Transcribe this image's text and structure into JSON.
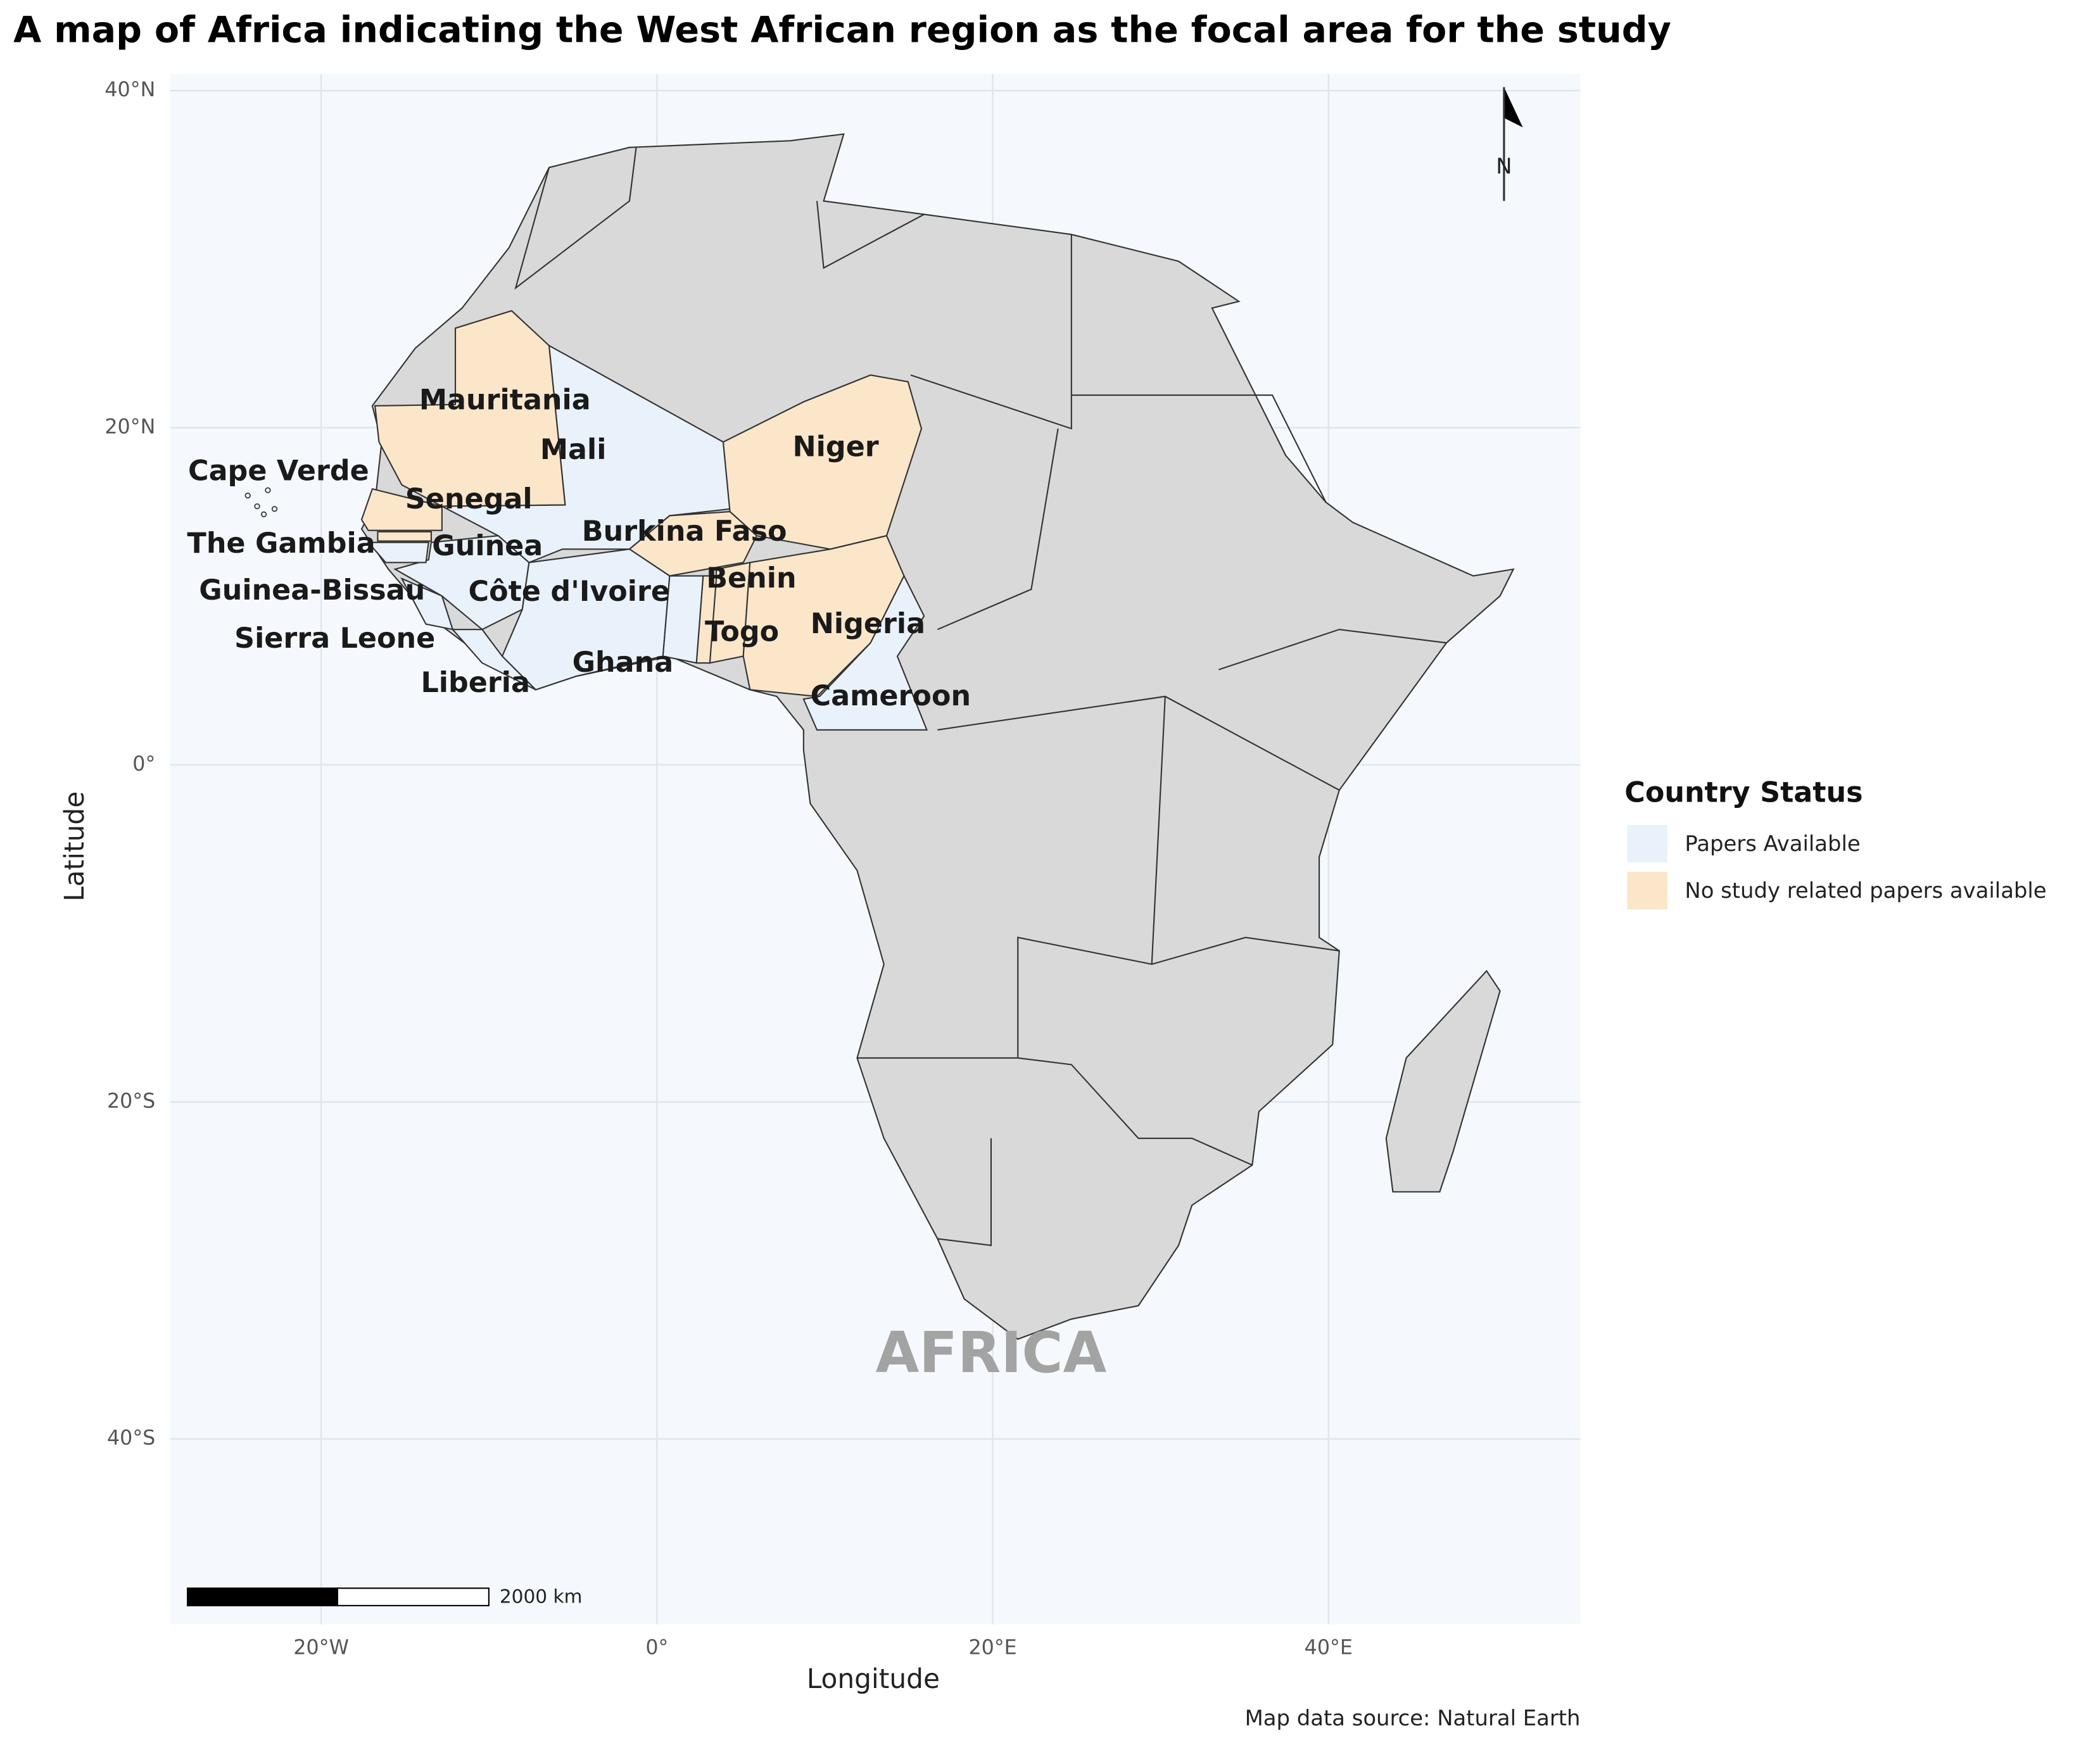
{
  "map": {
    "title": "A map of Africa indicating the West African region as the focal area for the study",
    "x_label": "Longitude",
    "y_label": "Latitude",
    "xlim": [
      -29,
      55
    ],
    "ylim": [
      -51,
      41
    ],
    "xticks": [
      {
        "value": -20,
        "label": "20°W"
      },
      {
        "value": 0,
        "label": "0°"
      },
      {
        "value": 20,
        "label": "20°E"
      },
      {
        "value": 40,
        "label": "40°E"
      }
    ],
    "yticks": [
      {
        "value": 40,
        "label": "40°N"
      },
      {
        "value": 20,
        "label": "20°N"
      },
      {
        "value": 0,
        "label": "0°"
      },
      {
        "value": -20,
        "label": "20°S"
      },
      {
        "value": -40,
        "label": "40°S"
      }
    ],
    "grid": true,
    "legend": {
      "title": "Country Status",
      "items": [
        {
          "label": "Papers Available",
          "color": "#e9f2fb"
        },
        {
          "label": "No study related papers available",
          "color": "#fbe6c9"
        }
      ]
    },
    "countries": [
      {
        "name": "Mauritania",
        "status": "No study related papers available"
      },
      {
        "name": "Mali",
        "status": "Papers Available"
      },
      {
        "name": "Niger",
        "status": "No study related papers available"
      },
      {
        "name": "Cape Verde",
        "status": "Papers Available"
      },
      {
        "name": "Senegal",
        "status": "No study related papers available"
      },
      {
        "name": "The Gambia",
        "status": "No study related papers available"
      },
      {
        "name": "Guinea",
        "status": "Papers Available"
      },
      {
        "name": "Burkina Faso",
        "status": "No study related papers available"
      },
      {
        "name": "Benin",
        "status": "No study related papers available"
      },
      {
        "name": "Guinea-Bissau",
        "status": "Papers Available"
      },
      {
        "name": "Côte d'Ivoire",
        "status": "Papers Available"
      },
      {
        "name": "Nigeria",
        "status": "No study related papers available"
      },
      {
        "name": "Sierra Leone",
        "status": "Papers Available"
      },
      {
        "name": "Togo",
        "status": "No study related papers available"
      },
      {
        "name": "Ghana",
        "status": "Papers Available"
      },
      {
        "name": "Liberia",
        "status": "Papers Available"
      },
      {
        "name": "Cameroon",
        "status": "Papers Available"
      }
    ],
    "region_label": "AFRICA",
    "north_label": "N",
    "scale_label": "2000 km",
    "source": "Map data source: Natural Earth"
  }
}
